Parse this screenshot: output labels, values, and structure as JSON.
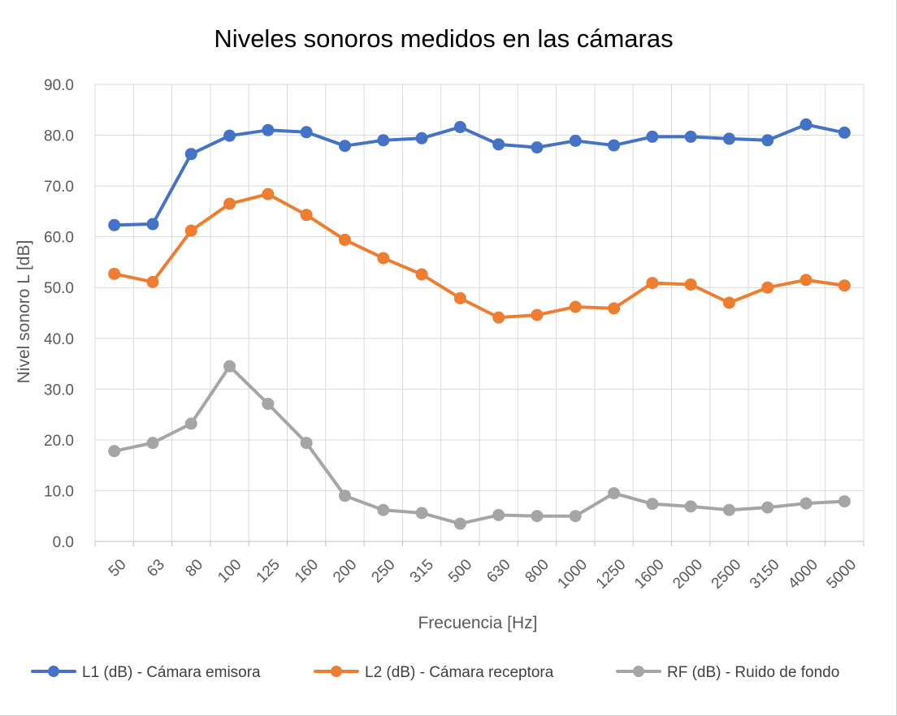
{
  "chart_data": {
    "type": "line",
    "title": "Niveles sonoros medidos en las cámaras",
    "xlabel": "Frecuencia [Hz]",
    "ylabel": "Nivel sonoro L [dB]",
    "ylim": [
      0,
      90
    ],
    "yticks": [
      "0.0",
      "10.0",
      "20.0",
      "30.0",
      "40.0",
      "50.0",
      "60.0",
      "70.0",
      "80.0",
      "90.0"
    ],
    "categories": [
      "50",
      "63",
      "80",
      "100",
      "125",
      "160",
      "200",
      "250",
      "315",
      "500",
      "630",
      "800",
      "1000",
      "1250",
      "1600",
      "2000",
      "2500",
      "3150",
      "4000",
      "5000"
    ],
    "grid": "vertical and horizontal",
    "legend_position": "bottom",
    "series": [
      {
        "name": "L1 (dB) - Cámara emisora",
        "color": "#4472c4",
        "values": [
          62.3,
          62.5,
          76.3,
          79.9,
          81.0,
          80.6,
          77.9,
          79.0,
          79.4,
          81.6,
          78.2,
          77.6,
          78.9,
          78.0,
          79.7,
          79.7,
          79.3,
          79.0,
          82.1,
          80.5
        ]
      },
      {
        "name": "L2 (dB) - Cámara receptora",
        "color": "#ed7d31",
        "values": [
          52.7,
          51.1,
          61.2,
          66.5,
          68.4,
          64.3,
          59.4,
          55.8,
          52.6,
          47.9,
          44.1,
          44.6,
          46.2,
          45.9,
          50.9,
          50.6,
          47.0,
          50.0,
          51.5,
          50.4
        ]
      },
      {
        "name": "RF (dB) - Ruido de fondo",
        "color": "#a5a5a5",
        "values": [
          17.8,
          19.4,
          23.2,
          34.5,
          27.1,
          19.4,
          9.0,
          6.2,
          5.6,
          3.5,
          5.2,
          5.0,
          5.0,
          9.5,
          7.4,
          6.9,
          6.2,
          6.7,
          7.5,
          7.9
        ]
      }
    ]
  }
}
